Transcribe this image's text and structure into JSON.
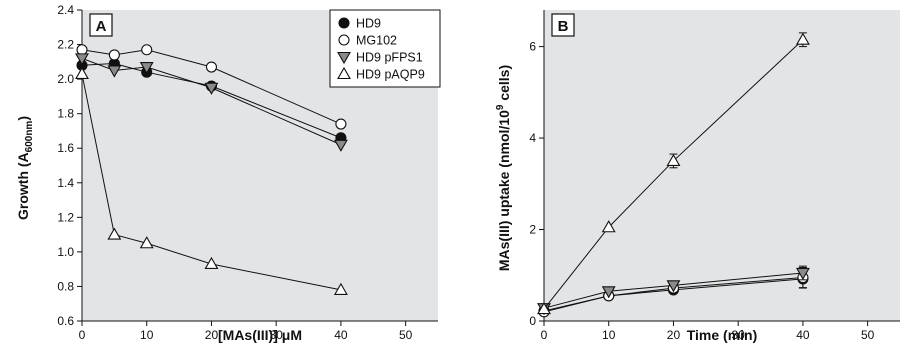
{
  "chart_data": [
    {
      "type": "line",
      "panel_label": "A",
      "xlabel": "[MAs(III)] μM",
      "ylabel": "Growth (A600nm)",
      "xlim": [
        0,
        55
      ],
      "ylim": [
        0.6,
        2.4
      ],
      "x_ticks": [
        "0",
        "10",
        "20",
        "30",
        "40",
        "50"
      ],
      "y_ticks": [
        "0.6",
        "0.8",
        "1.0",
        "1.2",
        "1.4",
        "1.6",
        "1.8",
        "2.0",
        "2.2",
        "2.4"
      ],
      "grid": false,
      "legend_position": "top-right",
      "series": [
        {
          "name": "HD9",
          "marker": "filled-circle",
          "x": [
            0,
            5,
            10,
            20,
            40
          ],
          "y": [
            2.08,
            2.09,
            2.04,
            1.96,
            1.66
          ]
        },
        {
          "name": "MG102",
          "marker": "open-circle",
          "x": [
            0,
            5,
            10,
            20,
            40
          ],
          "y": [
            2.17,
            2.14,
            2.17,
            2.07,
            1.74
          ]
        },
        {
          "name": "HD9 pFPS1",
          "marker": "filled-triangle-down",
          "x": [
            0,
            5,
            10,
            20,
            40
          ],
          "y": [
            2.12,
            2.05,
            2.07,
            1.95,
            1.62
          ]
        },
        {
          "name": "HD9 pAQP9",
          "marker": "open-triangle-up",
          "x": [
            0,
            5,
            10,
            20,
            40
          ],
          "y": [
            2.03,
            1.1,
            1.05,
            0.93,
            0.78
          ]
        }
      ]
    },
    {
      "type": "line",
      "panel_label": "B",
      "xlabel": "Time (min)",
      "ylabel": "MAs(III) uptake (nmol/109 cells)",
      "xlim": [
        0,
        55
      ],
      "ylim": [
        0,
        6.8
      ],
      "x_ticks": [
        "0",
        "10",
        "20",
        "30",
        "40",
        "50"
      ],
      "y_ticks": [
        "0",
        "2",
        "4",
        "6"
      ],
      "grid": false,
      "series": [
        {
          "name": "HD9",
          "marker": "filled-circle",
          "x": [
            0,
            10,
            20,
            40
          ],
          "y": [
            0.22,
            0.55,
            0.68,
            0.92
          ],
          "err": [
            0.05,
            0.05,
            0.06,
            0.2
          ]
        },
        {
          "name": "MG102",
          "marker": "open-circle",
          "x": [
            0,
            10,
            20,
            40
          ],
          "y": [
            0.2,
            0.55,
            0.72,
            0.95
          ],
          "err": [
            0.05,
            0.05,
            0.06,
            0.22
          ]
        },
        {
          "name": "HD9 pFPS1",
          "marker": "filled-triangle-down",
          "x": [
            0,
            10,
            20,
            40
          ],
          "y": [
            0.28,
            0.65,
            0.78,
            1.05
          ],
          "err": [
            0.05,
            0.05,
            0.06,
            0.15
          ]
        },
        {
          "name": "HD9 pAQP9",
          "marker": "open-triangle-up",
          "x": [
            0,
            10,
            20,
            40
          ],
          "y": [
            0.26,
            2.05,
            3.5,
            6.15
          ],
          "err": [
            0.05,
            0.06,
            0.15,
            0.15
          ]
        }
      ]
    }
  ]
}
